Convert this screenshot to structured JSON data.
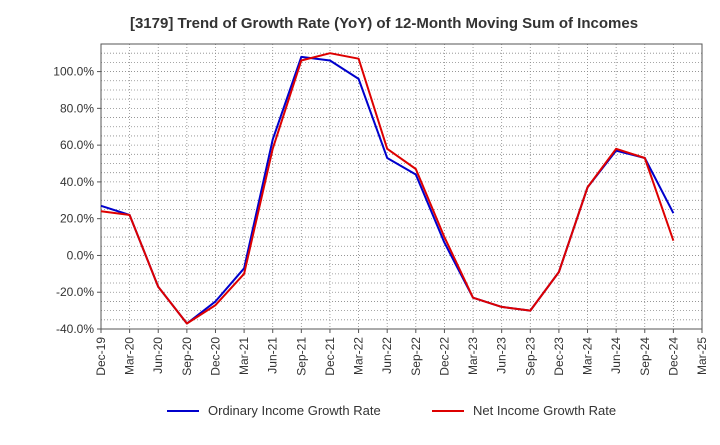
{
  "chart_data": {
    "type": "line",
    "title": "[3179]  Trend of Growth Rate (YoY) of 12-Month Moving Sum of Incomes",
    "xlabel": "",
    "ylabel": "",
    "x_tick_labels": [
      "Dec-19",
      "Mar-20",
      "Jun-20",
      "Sep-20",
      "Dec-20",
      "Mar-21",
      "Jun-21",
      "Sep-21",
      "Dec-21",
      "Mar-22",
      "Jun-22",
      "Sep-22",
      "Dec-22",
      "Mar-23",
      "Jun-23",
      "Sep-23",
      "Dec-23",
      "Mar-24",
      "Jun-24",
      "Sep-24",
      "Dec-24",
      "Mar-25"
    ],
    "y_tick_labels": [
      "100.0%",
      "80.0%",
      "60.0%",
      "40.0%",
      "20.0%",
      "0.0%",
      "-20.0%",
      "-40.0%"
    ],
    "y_ticks": [
      100,
      80,
      60,
      40,
      20,
      0,
      -20,
      -40
    ],
    "ylim": [
      -40,
      115
    ],
    "grid": true,
    "legend_position": "bottom",
    "series": [
      {
        "name": "Ordinary Income Growth Rate",
        "color": "#0000cc",
        "points": [
          {
            "x": "2019-12",
            "y": 27
          },
          {
            "x": "2020-03",
            "y": 22
          },
          {
            "x": "2020-06",
            "y": -17
          },
          {
            "x": "2020-09",
            "y": -37
          },
          {
            "x": "2020-12",
            "y": -25
          },
          {
            "x": "2021-03",
            "y": -7
          },
          {
            "x": "2021-06",
            "y": 63
          },
          {
            "x": "2021-09",
            "y": 108
          },
          {
            "x": "2021-12",
            "y": 106
          },
          {
            "x": "2022-03",
            "y": 96
          },
          {
            "x": "2022-06",
            "y": 53
          },
          {
            "x": "2022-09",
            "y": 44
          },
          {
            "x": "2022-12",
            "y": 7
          },
          {
            "x": "2023-03",
            "y": -23
          },
          {
            "x": "2023-06",
            "y": -28
          },
          {
            "x": "2023-09",
            "y": -30
          },
          {
            "x": "2023-12",
            "y": -9
          },
          {
            "x": "2024-03",
            "y": 37
          },
          {
            "x": "2024-06",
            "y": 57
          },
          {
            "x": "2024-09",
            "y": 53
          },
          {
            "x": "2024-12",
            "y": 23
          }
        ]
      },
      {
        "name": "Net Income Growth Rate",
        "color": "#dd0000",
        "points": [
          {
            "x": "2019-12",
            "y": 24
          },
          {
            "x": "2020-03",
            "y": 22
          },
          {
            "x": "2020-06",
            "y": -17
          },
          {
            "x": "2020-09",
            "y": -37
          },
          {
            "x": "2020-12",
            "y": -27
          },
          {
            "x": "2021-03",
            "y": -10
          },
          {
            "x": "2021-06",
            "y": 58
          },
          {
            "x": "2021-09",
            "y": 106
          },
          {
            "x": "2021-12",
            "y": 110
          },
          {
            "x": "2022-03",
            "y": 107
          },
          {
            "x": "2022-06",
            "y": 58
          },
          {
            "x": "2022-09",
            "y": 47
          },
          {
            "x": "2022-12",
            "y": 10
          },
          {
            "x": "2023-03",
            "y": -23
          },
          {
            "x": "2023-06",
            "y": -28
          },
          {
            "x": "2023-09",
            "y": -30
          },
          {
            "x": "2023-12",
            "y": -9
          },
          {
            "x": "2024-03",
            "y": 37
          },
          {
            "x": "2024-06",
            "y": 58
          },
          {
            "x": "2024-09",
            "y": 53
          },
          {
            "x": "2024-12",
            "y": 8
          }
        ]
      }
    ]
  }
}
